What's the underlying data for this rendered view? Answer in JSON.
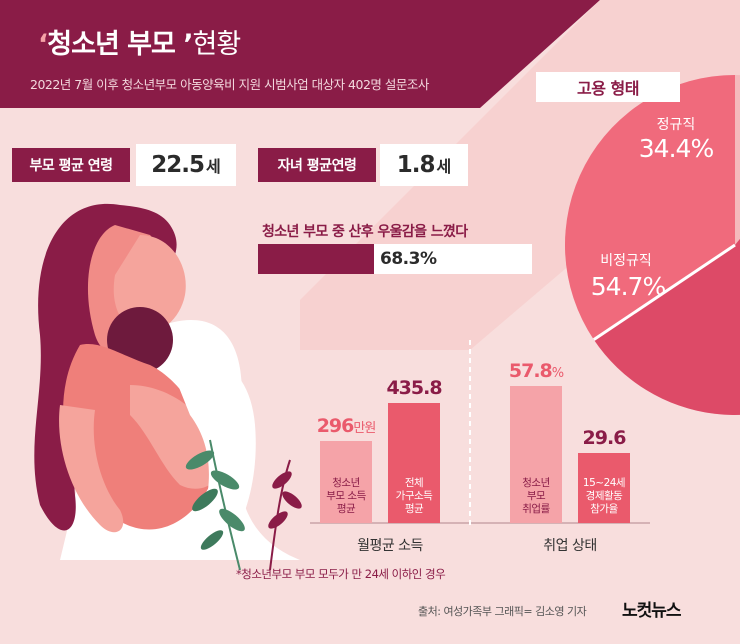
{
  "header": {
    "title_open_quote": "‘",
    "title_main": "청소년 부모 ’",
    "title_rest": "현황",
    "subtitle": "2022년 7월 이후 청소년부모 아동양육비 지원 시범사업 대상자 402명 설문조사"
  },
  "stats": {
    "parent_age_label": "부모 평균 연령",
    "parent_age_value": "22.5",
    "parent_age_unit": "세",
    "child_age_label": "자녀 평균연령",
    "child_age_value": "1.8",
    "child_age_unit": "세",
    "depression_label": "청소년 부모 중 산후 우울감을 느꼈다",
    "depression_value": "68.3%",
    "depression_fraction": 0.683
  },
  "employment": {
    "title": "고용 형태",
    "regular_label": "정규직",
    "regular_value": "34.4%",
    "irregular_label": "비정규직",
    "irregular_value": "54.7%",
    "colors": {
      "regular": "#f06a7c",
      "irregular": "#dd4a67",
      "other": "#f5b9bc"
    }
  },
  "chart_data": {
    "type": "bar",
    "groups": [
      {
        "label": "월평균 소득",
        "bars": [
          {
            "value": 296,
            "display": "296",
            "unit": "만원",
            "label": "청소년\n부모 소득\n평균",
            "color": "#f5a3a8"
          },
          {
            "value": 435.8,
            "display": "435.8",
            "unit": "",
            "label": "전체\n가구소득\n평균",
            "color": "#ea5a6c"
          }
        ]
      },
      {
        "label": "취업 상태",
        "bars": [
          {
            "value": 57.8,
            "display": "57.8",
            "unit": "%",
            "label": "청소년\n부모\n취업률",
            "color": "#f5a3a8"
          },
          {
            "value": 29.6,
            "display": "29.6",
            "unit": "",
            "label": "15~24세\n경제활동\n참가율",
            "color": "#ea5a6c"
          }
        ]
      }
    ]
  },
  "footnote": "*청소년부모 부모 모두가 만 24세 이하인 경우",
  "source": "출처: 여성가족부   그래픽= 김소영 기자",
  "logo": "노컷뉴스",
  "icons": [
    "mother-child-illustration",
    "leaf-branch-icon",
    "flower-icon"
  ]
}
